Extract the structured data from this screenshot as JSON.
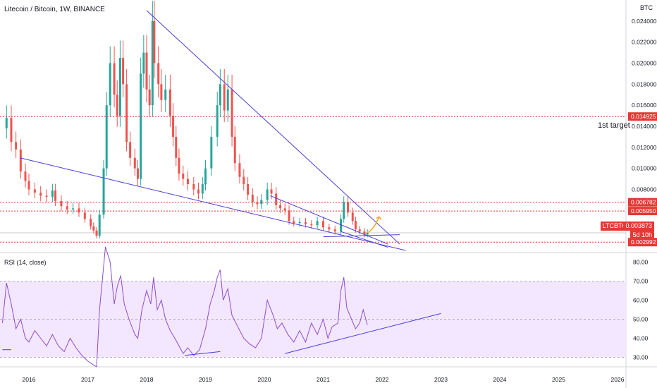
{
  "header": {
    "title": "Litecoin / Bitcoin, 1W, BINANCE"
  },
  "unit_label": "BTC",
  "rsi_header": "RSI (14, close)",
  "annotations": {
    "target_label": "1st target"
  },
  "colors": {
    "up": "#26a69a",
    "down": "#ef5350",
    "level": "#e53935",
    "trend": "#4a3fd6",
    "rsi_line": "#8e4fc9",
    "rsi_band": "#f3e6ff",
    "arrow": "#f5a623"
  },
  "chart_data": [
    {
      "type": "candlestick",
      "title": "Litecoin / Bitcoin, 1W, BINANCE",
      "ylim": [
        0.002,
        0.026
      ],
      "x_ticks": [
        "2016",
        "2017",
        "2018",
        "2019",
        "2020",
        "2021",
        "2022",
        "2023",
        "2024",
        "2025",
        "2026"
      ],
      "y_ticks": [
        "0.024000",
        "0.022000",
        "0.020000",
        "0.018000",
        "0.016000",
        "0.014000",
        "0.012000",
        "0.010000",
        "0.008000"
      ],
      "price_levels": [
        {
          "label": "0.014925",
          "value": 0.014925
        },
        {
          "label": "0.006782",
          "value": 0.006782
        },
        {
          "label": "0.005950",
          "value": 0.00595
        },
        {
          "label": "0.002992",
          "value": 0.002992
        }
      ],
      "current_price": {
        "symbol": "LTCBTC",
        "label": "0.003873",
        "value": 0.003873,
        "countdown": "5d 10h"
      },
      "series_close": [
        [
          2015.55,
          0.0138
        ],
        [
          2015.62,
          0.0148
        ],
        [
          2015.7,
          0.0125
        ],
        [
          2015.78,
          0.0118
        ],
        [
          2015.86,
          0.0097
        ],
        [
          2015.94,
          0.0088
        ],
        [
          2016.0,
          0.008
        ],
        [
          2016.1,
          0.0077
        ],
        [
          2016.2,
          0.0074
        ],
        [
          2016.3,
          0.0073
        ],
        [
          2016.4,
          0.0079
        ],
        [
          2016.45,
          0.0069
        ],
        [
          2016.55,
          0.0064
        ],
        [
          2016.65,
          0.0061
        ],
        [
          2016.75,
          0.0062
        ],
        [
          2016.85,
          0.0058
        ],
        [
          2016.95,
          0.0052
        ],
        [
          2017.05,
          0.0045
        ],
        [
          2017.1,
          0.0041
        ],
        [
          2017.15,
          0.0036
        ],
        [
          2017.2,
          0.0056
        ],
        [
          2017.27,
          0.01
        ],
        [
          2017.32,
          0.016
        ],
        [
          2017.38,
          0.02
        ],
        [
          2017.45,
          0.017
        ],
        [
          2017.5,
          0.015
        ],
        [
          2017.55,
          0.0205
        ],
        [
          2017.6,
          0.018
        ],
        [
          2017.66,
          0.0125
        ],
        [
          2017.72,
          0.011
        ],
        [
          2017.8,
          0.01
        ],
        [
          2017.85,
          0.009
        ],
        [
          2017.9,
          0.019
        ],
        [
          2017.95,
          0.021
        ],
        [
          2018.0,
          0.0175
        ],
        [
          2018.05,
          0.016
        ],
        [
          2018.1,
          0.024
        ],
        [
          2018.13,
          0.02
        ],
        [
          2018.2,
          0.018
        ],
        [
          2018.25,
          0.0165
        ],
        [
          2018.32,
          0.0175
        ],
        [
          2018.4,
          0.015
        ],
        [
          2018.45,
          0.013
        ],
        [
          2018.5,
          0.011
        ],
        [
          2018.55,
          0.0095
        ],
        [
          2018.62,
          0.009
        ],
        [
          2018.7,
          0.0085
        ],
        [
          2018.8,
          0.008
        ],
        [
          2018.88,
          0.0076
        ],
        [
          2018.95,
          0.0085
        ],
        [
          2019.0,
          0.01
        ],
        [
          2019.1,
          0.013
        ],
        [
          2019.2,
          0.016
        ],
        [
          2019.25,
          0.018
        ],
        [
          2019.32,
          0.0155
        ],
        [
          2019.38,
          0.0175
        ],
        [
          2019.45,
          0.013
        ],
        [
          2019.5,
          0.0105
        ],
        [
          2019.58,
          0.0092
        ],
        [
          2019.65,
          0.0085
        ],
        [
          2019.72,
          0.0075
        ],
        [
          2019.8,
          0.0068
        ],
        [
          2019.88,
          0.0066
        ],
        [
          2019.95,
          0.007
        ],
        [
          2020.05,
          0.008
        ],
        [
          2020.12,
          0.0076
        ],
        [
          2020.2,
          0.0065
        ],
        [
          2020.27,
          0.0062
        ],
        [
          2020.35,
          0.006
        ],
        [
          2020.42,
          0.005
        ],
        [
          2020.5,
          0.0048
        ],
        [
          2020.6,
          0.0049
        ],
        [
          2020.7,
          0.0047
        ],
        [
          2020.8,
          0.0046
        ],
        [
          2020.9,
          0.005
        ],
        [
          2021.0,
          0.0044
        ],
        [
          2021.1,
          0.0042
        ],
        [
          2021.2,
          0.004
        ],
        [
          2021.3,
          0.0052
        ],
        [
          2021.35,
          0.0068
        ],
        [
          2021.42,
          0.0058
        ],
        [
          2021.5,
          0.005
        ],
        [
          2021.55,
          0.0042
        ],
        [
          2021.62,
          0.004
        ],
        [
          2021.7,
          0.0037
        ],
        [
          2021.75,
          0.0039
        ]
      ]
    },
    {
      "type": "line",
      "name": "RSI (14, close)",
      "ylim": [
        25,
        85
      ],
      "y_ticks": [
        "80.00",
        "70.00",
        "60.00",
        "50.00",
        "40.00",
        "30.00"
      ],
      "band": [
        30,
        70
      ],
      "values": [
        [
          2015.55,
          48
        ],
        [
          2015.62,
          69
        ],
        [
          2015.7,
          58
        ],
        [
          2015.78,
          45
        ],
        [
          2015.86,
          50
        ],
        [
          2015.94,
          40
        ],
        [
          2016.0,
          38
        ],
        [
          2016.1,
          44
        ],
        [
          2016.2,
          40
        ],
        [
          2016.3,
          36
        ],
        [
          2016.4,
          42
        ],
        [
          2016.5,
          36
        ],
        [
          2016.6,
          33
        ],
        [
          2016.7,
          40
        ],
        [
          2016.8,
          35
        ],
        [
          2016.9,
          31
        ],
        [
          2017.0,
          28
        ],
        [
          2017.1,
          26
        ],
        [
          2017.15,
          25
        ],
        [
          2017.2,
          55
        ],
        [
          2017.27,
          78
        ],
        [
          2017.3,
          88
        ],
        [
          2017.38,
          80
        ],
        [
          2017.45,
          58
        ],
        [
          2017.5,
          67
        ],
        [
          2017.56,
          73
        ],
        [
          2017.62,
          58
        ],
        [
          2017.7,
          50
        ],
        [
          2017.8,
          42
        ],
        [
          2017.85,
          40
        ],
        [
          2017.92,
          55
        ],
        [
          2018.0,
          65
        ],
        [
          2018.07,
          58
        ],
        [
          2018.12,
          72
        ],
        [
          2018.18,
          55
        ],
        [
          2018.25,
          60
        ],
        [
          2018.32,
          50
        ],
        [
          2018.4,
          44
        ],
        [
          2018.48,
          40
        ],
        [
          2018.55,
          36
        ],
        [
          2018.62,
          32
        ],
        [
          2018.7,
          35
        ],
        [
          2018.8,
          31
        ],
        [
          2018.9,
          34
        ],
        [
          2019.0,
          45
        ],
        [
          2019.08,
          58
        ],
        [
          2019.15,
          65
        ],
        [
          2019.2,
          72
        ],
        [
          2019.25,
          76
        ],
        [
          2019.3,
          60
        ],
        [
          2019.38,
          66
        ],
        [
          2019.45,
          52
        ],
        [
          2019.55,
          46
        ],
        [
          2019.65,
          40
        ],
        [
          2019.75,
          37
        ],
        [
          2019.85,
          35
        ],
        [
          2019.95,
          40
        ],
        [
          2020.05,
          60
        ],
        [
          2020.15,
          52
        ],
        [
          2020.22,
          45
        ],
        [
          2020.3,
          48
        ],
        [
          2020.4,
          42
        ],
        [
          2020.5,
          38
        ],
        [
          2020.6,
          44
        ],
        [
          2020.7,
          38
        ],
        [
          2020.8,
          48
        ],
        [
          2020.9,
          42
        ],
        [
          2021.0,
          50
        ],
        [
          2021.08,
          40
        ],
        [
          2021.15,
          46
        ],
        [
          2021.25,
          48
        ],
        [
          2021.3,
          65
        ],
        [
          2021.35,
          72
        ],
        [
          2021.4,
          56
        ],
        [
          2021.48,
          50
        ],
        [
          2021.55,
          45
        ],
        [
          2021.62,
          48
        ],
        [
          2021.68,
          55
        ],
        [
          2021.75,
          47
        ]
      ]
    }
  ]
}
